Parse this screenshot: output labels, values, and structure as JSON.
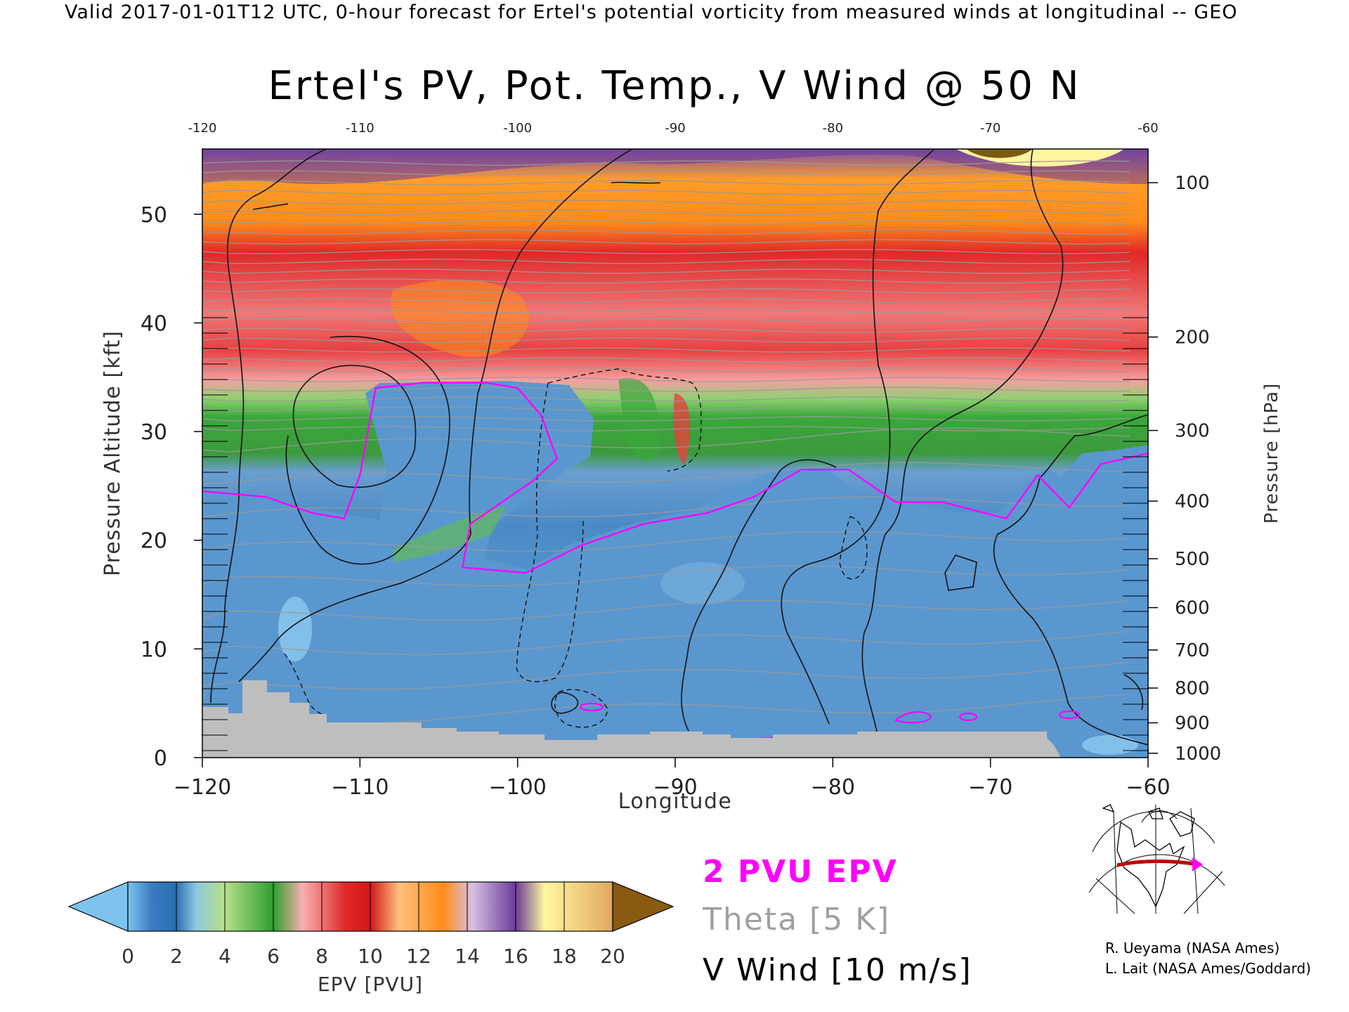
{
  "header": "Valid 2017-01-01T12 UTC, 0-hour forecast for Ertel's potential vorticity from measured winds at longitudinal -- GEO",
  "title": "Ertel's PV, Pot. Temp., V Wind @ 50 N",
  "chart_data": {
    "type": "heatmap",
    "title": "Ertel's PV, Pot. Temp., V Wind @ 50 N",
    "xlabel": "Longitude",
    "ylabel": "Pressure Altitude [kft]",
    "y2label": "Pressure [hPa]",
    "xlim": [
      -120,
      -60
    ],
    "ylim": [
      0,
      56
    ],
    "x_ticks": [
      "−120",
      "−110",
      "−100",
      "−90",
      "−80",
      "−70",
      "−60"
    ],
    "x_top_ticks": [
      "-120",
      "-110",
      "-100",
      "-90",
      "-80",
      "-70",
      "-60"
    ],
    "y_ticks": [
      "0",
      "10",
      "20",
      "30",
      "40",
      "50"
    ],
    "y2_ticks": [
      {
        "label": "100",
        "kft": 52.9
      },
      {
        "label": "200",
        "kft": 38.7
      },
      {
        "label": "300",
        "kft": 30.1
      },
      {
        "label": "400",
        "kft": 23.6
      },
      {
        "label": "500",
        "kft": 18.3
      },
      {
        "label": "600",
        "kft": 13.8
      },
      {
        "label": "700",
        "kft": 9.9
      },
      {
        "label": "800",
        "kft": 6.4
      },
      {
        "label": "900",
        "kft": 3.2
      },
      {
        "label": "1000",
        "kft": 0.4
      }
    ],
    "colorbar": {
      "label": "EPV [PVU]",
      "ticks": [
        "0",
        "2",
        "4",
        "6",
        "8",
        "10",
        "12",
        "14",
        "16",
        "18",
        "20"
      ],
      "min": 0,
      "max": 20,
      "colors": [
        "#7cc4ee",
        "#4a8fc8",
        "#a8d88a",
        "#2f9e2f",
        "#f08a8a",
        "#e02828",
        "#ffb060",
        "#ff8c1a",
        "#c0a8d8",
        "#6a3a9a",
        "#fff8a0"
      ],
      "under_color": "#7cc4ee",
      "over_color": "#8a5a10"
    },
    "tropopause_2pvu": [
      [
        -120,
        24.5
      ],
      [
        -116,
        24.0
      ],
      [
        -113,
        22.5
      ],
      [
        -111,
        22.0
      ],
      [
        -110,
        26.0
      ],
      [
        -109,
        34.0
      ],
      [
        -106,
        34.5
      ],
      [
        -102,
        34.5
      ],
      [
        -100,
        34.0
      ],
      [
        -98.5,
        31.5
      ],
      [
        -97.5,
        27.5
      ],
      [
        -99,
        25.5
      ],
      [
        -101,
        23.5
      ],
      [
        -103,
        21.5
      ],
      [
        -103.5,
        17.5
      ],
      [
        -99.5,
        17.0
      ],
      [
        -96,
        19.5
      ],
      [
        -92,
        21.5
      ],
      [
        -88,
        22.5
      ],
      [
        -85,
        24.0
      ],
      [
        -82,
        26.5
      ],
      [
        -79,
        26.5
      ],
      [
        -76,
        23.5
      ],
      [
        -73,
        23.5
      ],
      [
        -69,
        22.0
      ],
      [
        -67,
        26.0
      ],
      [
        -65,
        23.0
      ],
      [
        -63,
        27.0
      ],
      [
        -60,
        28.0
      ]
    ],
    "legend": {
      "pvu": "2 PVU EPV",
      "theta": "Theta [5 K]",
      "wind": "V Wind [10 m/s]"
    }
  },
  "credits": [
    "R. Ueyama (NASA Ames)",
    "L. Lait (NASA Ames/Goddard)"
  ],
  "colors": {
    "pvu_line": "#ff00ff",
    "theta_line": "#9a9a9a",
    "terrain": "#bebebe",
    "map_path": "#c00000",
    "map_marker": "#ff00ff"
  }
}
